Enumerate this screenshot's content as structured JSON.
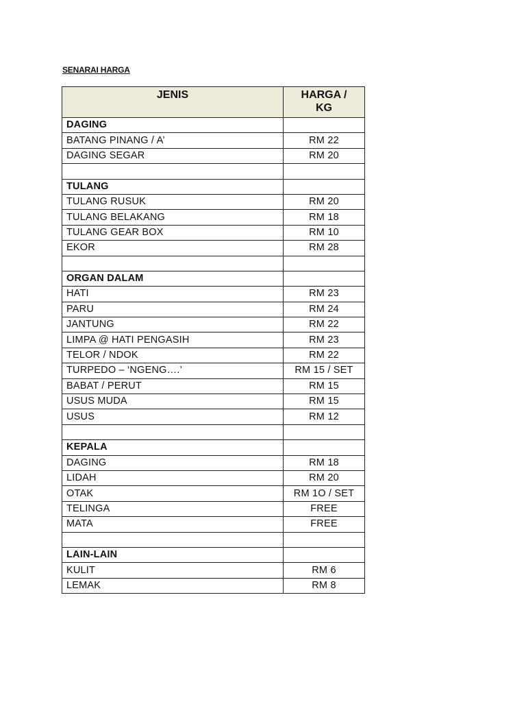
{
  "title": "SENARAI HARGA",
  "table": {
    "headers": [
      "JENIS",
      "HARGA / KG"
    ],
    "header_bg": "#eeebdb",
    "rows": [
      {
        "name": "DAGING",
        "price": "",
        "section": true
      },
      {
        "name": "BATANG PINANG / A’",
        "price": "RM 22"
      },
      {
        "name": "DAGING SEGAR",
        "price": "RM 20"
      },
      {
        "name": "",
        "price": ""
      },
      {
        "name": "TULANG",
        "price": "",
        "section": true
      },
      {
        "name": "TULANG RUSUK",
        "price": "RM 20"
      },
      {
        "name": "TULANG BELAKANG",
        "price": "RM 18"
      },
      {
        "name": "TULANG GEAR BOX",
        "price": "RM 10"
      },
      {
        "name": "EKOR",
        "price": "RM 28"
      },
      {
        "name": "",
        "price": ""
      },
      {
        "name": "ORGAN DALAM",
        "price": "",
        "section": true
      },
      {
        "name": "HATI",
        "price": "RM 23"
      },
      {
        "name": "PARU",
        "price": "RM 24"
      },
      {
        "name": "JANTUNG",
        "price": "RM 22"
      },
      {
        "name": "LIMPA @ HATI PENGASIH",
        "price": "RM 23"
      },
      {
        "name": "TELOR / NDOK",
        "price": "RM 22"
      },
      {
        "name": "TURPEDO – ‘NGENG….’",
        "price": "RM 15 / SET"
      },
      {
        "name": "BABAT / PERUT",
        "price": "RM 15"
      },
      {
        "name": "USUS MUDA",
        "price": "RM 15"
      },
      {
        "name": "USUS",
        "price": "RM 12"
      },
      {
        "name": "",
        "price": ""
      },
      {
        "name": "KEPALA",
        "price": "",
        "section": true
      },
      {
        "name": "DAGING",
        "price": "RM 18"
      },
      {
        "name": "LIDAH",
        "price": "RM 20"
      },
      {
        "name": "OTAK",
        "price": "RM 1O / SET"
      },
      {
        "name": "TELINGA",
        "price": "FREE"
      },
      {
        "name": "MATA",
        "price": "FREE"
      },
      {
        "name": "",
        "price": ""
      },
      {
        "name": "LAIN-LAIN",
        "price": "",
        "section": true
      },
      {
        "name": "KULIT",
        "price": "RM 6"
      },
      {
        "name": "LEMAK",
        "price": "RM 8"
      }
    ]
  }
}
